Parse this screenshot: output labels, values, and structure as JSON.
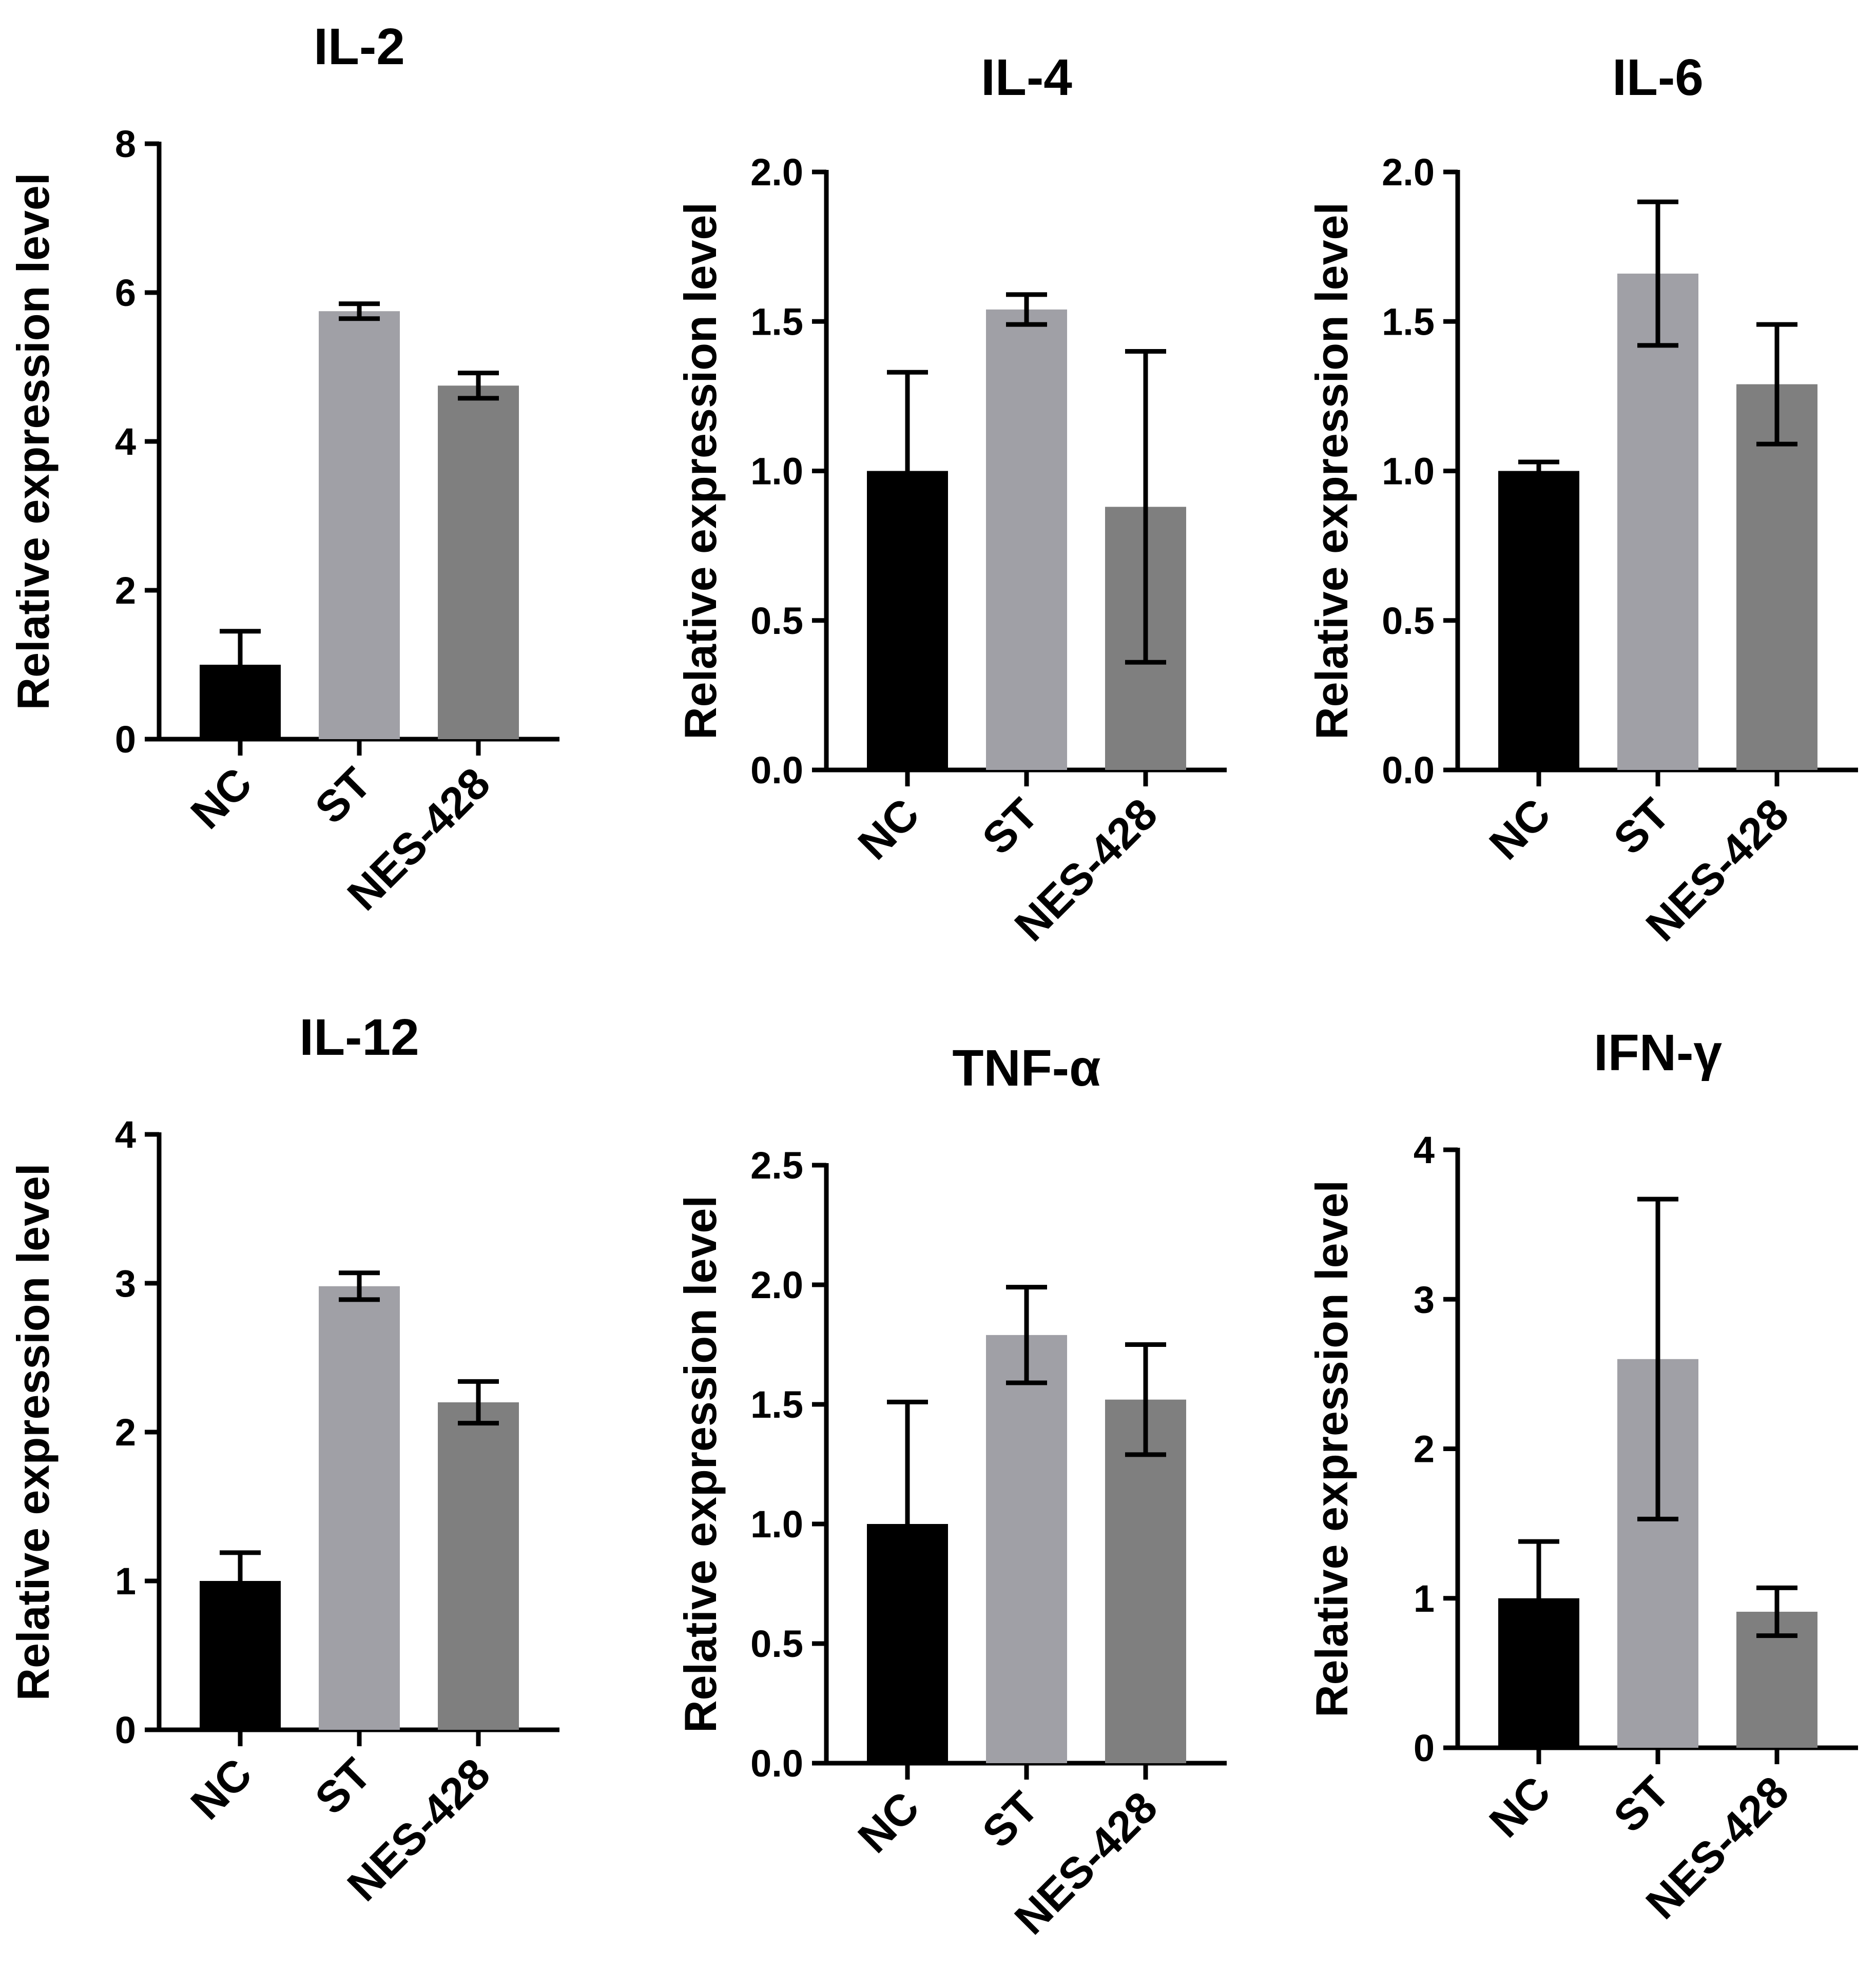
{
  "colors": {
    "NC": "#000000",
    "ST": "#a0a0a6",
    "NES-428": "#7f7f7f",
    "axis": "#000000"
  },
  "chart_data": [
    {
      "type": "bar",
      "title": "IL-2",
      "ylabel": "Relative expression level",
      "categories": [
        "NC",
        "ST",
        "NES-428"
      ],
      "values": [
        1.0,
        5.75,
        4.75
      ],
      "errors": [
        0.45,
        0.1,
        0.17
      ],
      "ylim": [
        0,
        8
      ],
      "yticks": [
        "0",
        "2",
        "4",
        "6",
        "8"
      ],
      "ytick_values": [
        0,
        2,
        4,
        6,
        8
      ]
    },
    {
      "type": "bar",
      "title": "IL-4",
      "ylabel": "Relative expression level",
      "categories": [
        "NC",
        "ST",
        "NES-428"
      ],
      "values": [
        1.0,
        1.54,
        0.88
      ],
      "errors": [
        0.33,
        0.05,
        0.52
      ],
      "ylim": [
        0,
        2.0
      ],
      "yticks": [
        "0.0",
        "0.5",
        "1.0",
        "1.5",
        "2.0"
      ],
      "ytick_values": [
        0,
        0.5,
        1.0,
        1.5,
        2.0
      ]
    },
    {
      "type": "bar",
      "title": "IL-6",
      "ylabel": "Relative expression level",
      "categories": [
        "NC",
        "ST",
        "NES-428"
      ],
      "values": [
        1.0,
        1.66,
        1.29
      ],
      "errors": [
        0.03,
        0.24,
        0.2
      ],
      "ylim": [
        0,
        2.0
      ],
      "yticks": [
        "0.0",
        "0.5",
        "1.0",
        "1.5",
        "2.0"
      ],
      "ytick_values": [
        0,
        0.5,
        1.0,
        1.5,
        2.0
      ]
    },
    {
      "type": "bar",
      "title": "IL-12",
      "ylabel": "Relative expression level",
      "categories": [
        "NC",
        "ST",
        "NES-428"
      ],
      "values": [
        1.0,
        2.98,
        2.2
      ],
      "errors": [
        0.19,
        0.09,
        0.14
      ],
      "ylim": [
        0,
        4
      ],
      "yticks": [
        "0",
        "1",
        "2",
        "3",
        "4"
      ],
      "ytick_values": [
        0,
        1,
        2,
        3,
        4
      ]
    },
    {
      "type": "bar",
      "title": "TNF-α",
      "ylabel": "Relative expression level",
      "categories": [
        "NC",
        "ST",
        "NES-428"
      ],
      "values": [
        1.0,
        1.79,
        1.52
      ],
      "errors": [
        0.51,
        0.2,
        0.23
      ],
      "ylim": [
        0,
        2.5
      ],
      "yticks": [
        "0.0",
        "0.5",
        "1.0",
        "1.5",
        "2.0",
        "2.5"
      ],
      "ytick_values": [
        0,
        0.5,
        1.0,
        1.5,
        2.0,
        2.5
      ]
    },
    {
      "type": "bar",
      "title": "IFN-γ",
      "ylabel": "Relative expression level",
      "categories": [
        "NC",
        "ST",
        "NES-428"
      ],
      "values": [
        1.0,
        2.6,
        0.91
      ],
      "errors": [
        0.38,
        1.07,
        0.16
      ],
      "ylim": [
        0,
        4
      ],
      "yticks": [
        "0",
        "1",
        "2",
        "3",
        "4"
      ],
      "ytick_values": [
        0,
        1,
        2,
        3,
        4
      ]
    }
  ]
}
